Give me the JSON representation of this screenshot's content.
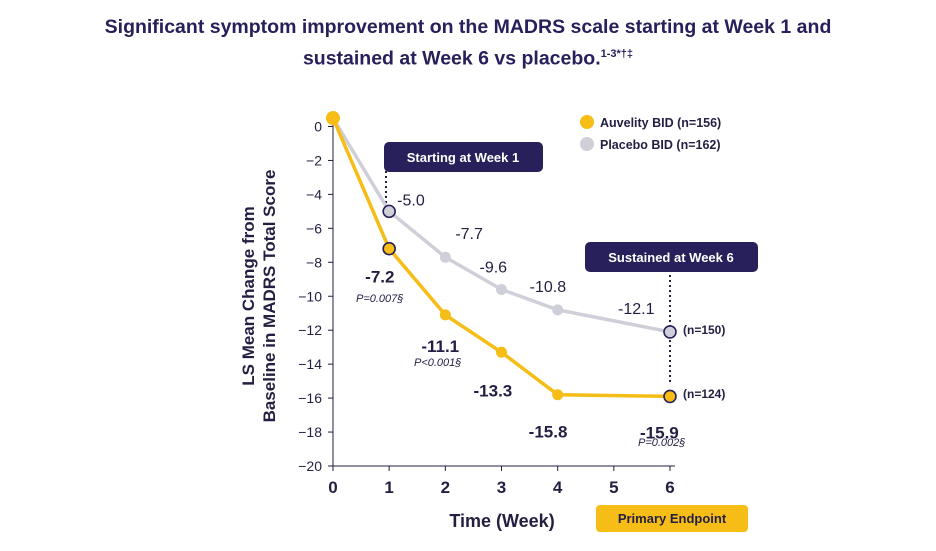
{
  "title": {
    "line1": "Significant symptom improvement on the MADRS scale starting at Week 1 and",
    "line2": "sustained at Week 6 vs placebo.",
    "footnote": "1-3*†‡"
  },
  "colors": {
    "auvelity": "#f6bd16",
    "placebo": "#cfcfd9",
    "dark": "#27205a",
    "text": "#231f42"
  },
  "legend": {
    "auvelity": "Auvelity BID (n=156)",
    "placebo": "Placebo BID (n=162)"
  },
  "callouts": {
    "week1": "Starting at Week 1",
    "week6": "Sustained at Week 6",
    "primary": "Primary Endpoint"
  },
  "annotations": {
    "w1_p": "P=0.007§",
    "w2_p": "P<0.001§",
    "w6_p": "P=0.002§",
    "w6_placebo_n": "(n=150)",
    "w6_auvelity_n": "(n=124)"
  },
  "chart_data": {
    "type": "line",
    "title": "Significant symptom improvement on the MADRS scale starting at Week 1 and sustained at Week 6 vs placebo.",
    "xlabel": "Time (Week)",
    "ylabel_line1": "LS Mean Change from",
    "ylabel_line2": "Baseline in MADRS Total Score",
    "xlim": [
      0,
      6
    ],
    "ylim": [
      -20,
      0
    ],
    "x_ticks": [
      "0",
      "1",
      "2",
      "3",
      "4",
      "5",
      "6"
    ],
    "y_ticks": [
      "0",
      "−2",
      "−4",
      "−6",
      "−8",
      "−10",
      "−12",
      "−14",
      "−16",
      "−18",
      "−20"
    ],
    "y_tick_values": [
      0,
      -2,
      -4,
      -6,
      -8,
      -10,
      -12,
      -14,
      -16,
      -18,
      -20
    ],
    "series": [
      {
        "name": "Auvelity BID (n=156)",
        "x": [
          0,
          1,
          2,
          3,
          4,
          6
        ],
        "y": [
          0.5,
          -7.2,
          -11.1,
          -13.3,
          -15.8,
          -15.9
        ],
        "labels": [
          "",
          "-7.2",
          "-11.1",
          "-13.3",
          "-15.8",
          "-15.9"
        ]
      },
      {
        "name": "Placebo BID (n=162)",
        "x": [
          0,
          1,
          2,
          3,
          4,
          6
        ],
        "y": [
          0.5,
          -5.0,
          -7.7,
          -9.6,
          -10.8,
          -12.1
        ],
        "labels": [
          "",
          "-5.0",
          "-7.7",
          "-9.6",
          "-10.8",
          "-12.1"
        ]
      }
    ],
    "legend_position": "top-right",
    "grid": false
  }
}
